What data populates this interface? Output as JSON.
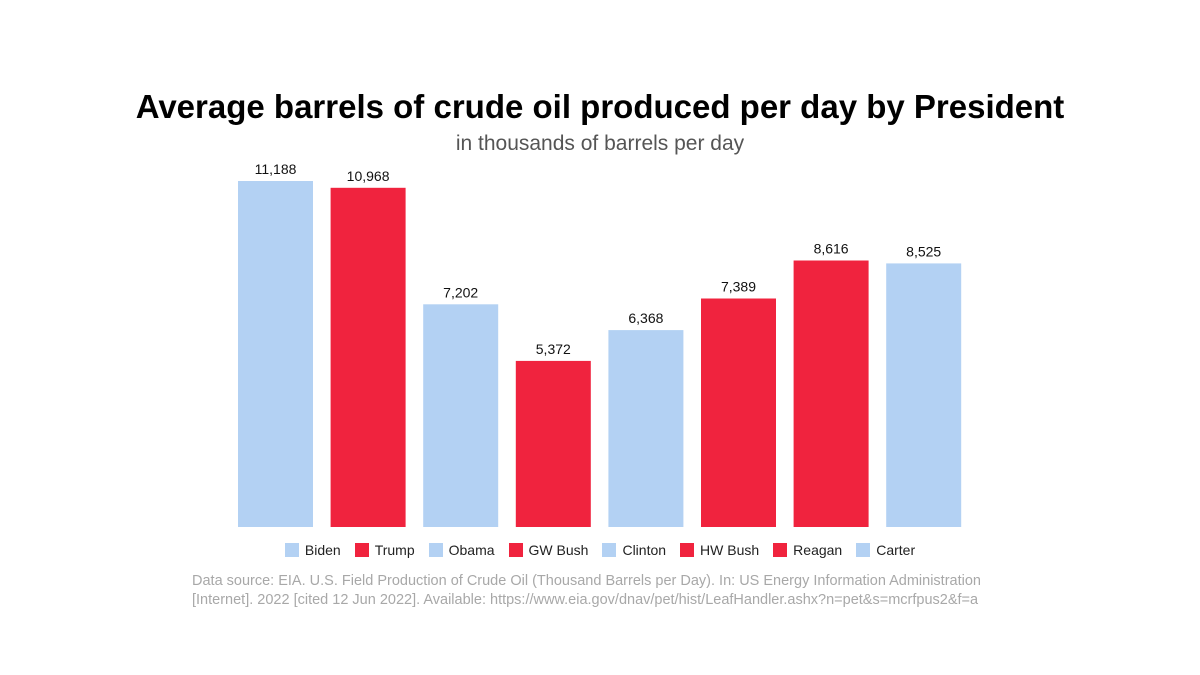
{
  "chart_data": {
    "type": "bar",
    "title": "Average barrels of crude oil produced per day by President",
    "subtitle": "in thousands of barrels per day",
    "categories": [
      "Biden",
      "Trump",
      "Obama",
      "GW Bush",
      "Clinton",
      "HW Bush",
      "Reagan",
      "Carter"
    ],
    "values": [
      11188,
      10968,
      7202,
      5372,
      6368,
      7389,
      8616,
      8525
    ],
    "value_labels": [
      "11,188",
      "10,968",
      "7,202",
      "5,372",
      "6,368",
      "7,389",
      "8,616",
      "8,525"
    ],
    "party": [
      "D",
      "R",
      "D",
      "R",
      "D",
      "R",
      "R",
      "D"
    ],
    "colors": {
      "D": "#b3d1f3",
      "R": "#f0233e"
    },
    "xlabel": "",
    "ylabel": "",
    "ylim": [
      0,
      11188
    ],
    "grid": false,
    "legend": "bottom"
  },
  "source": {
    "line1": "Data source: EIA. U.S. Field Production of Crude Oil (Thousand Barrels per Day). In: US Energy Information Administration",
    "line2": "[Internet]. 2022 [cited 12 Jun 2022]. Available: https://www.eia.gov/dnav/pet/hist/LeafHandler.ashx?n=pet&s=mcrfpus2&f=a"
  }
}
